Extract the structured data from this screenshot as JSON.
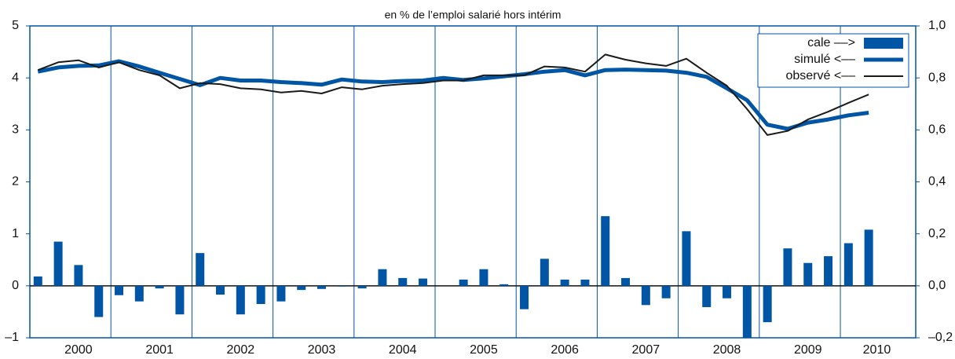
{
  "chart_data": {
    "type": "combo",
    "title": "en % de l’emploi salarié hors intérim",
    "x": [
      2000.1,
      2000.35,
      2000.6,
      2000.85,
      2001.1,
      2001.35,
      2001.6,
      2001.85,
      2002.1,
      2002.35,
      2002.6,
      2002.85,
      2003.1,
      2003.35,
      2003.6,
      2003.85,
      2004.1,
      2004.35,
      2004.6,
      2004.85,
      2005.1,
      2005.35,
      2005.6,
      2005.85,
      2006.1,
      2006.35,
      2006.6,
      2006.85,
      2007.1,
      2007.35,
      2007.6,
      2007.85,
      2008.1,
      2008.35,
      2008.6,
      2008.85,
      2009.1,
      2009.35,
      2009.6,
      2009.85,
      2010.1,
      2010.35
    ],
    "xlim": [
      2000,
      2010.93
    ],
    "xticks": [
      {
        "value": 2000.6,
        "label": "2000"
      },
      {
        "value": 2001.6,
        "label": "2001"
      },
      {
        "value": 2002.6,
        "label": "2002"
      },
      {
        "value": 2003.6,
        "label": "2003"
      },
      {
        "value": 2004.6,
        "label": "2004"
      },
      {
        "value": 2005.6,
        "label": "2005"
      },
      {
        "value": 2006.6,
        "label": "2006"
      },
      {
        "value": 2007.6,
        "label": "2007"
      },
      {
        "value": 2008.6,
        "label": "2008"
      },
      {
        "value": 2009.6,
        "label": "2009"
      },
      {
        "value": 2010.45,
        "label": "2010"
      }
    ],
    "xgrid": [
      2001,
      2002,
      2003,
      2004,
      2005,
      2006,
      2007,
      2008,
      2009,
      2010
    ],
    "ylim": [
      -1,
      5
    ],
    "yticks": [
      {
        "value": -1,
        "label": "–1"
      },
      0,
      1,
      2,
      3,
      4,
      5
    ],
    "y2lim": [
      -0.2,
      1.0
    ],
    "y2ticks": [
      {
        "value": -0.2,
        "label": "–0,2"
      },
      {
        "value": 0,
        "label": "0,0"
      },
      {
        "value": 0.2,
        "label": "0,2"
      },
      {
        "value": 0.4,
        "label": "0,4"
      },
      {
        "value": 0.6,
        "label": "0,6"
      },
      {
        "value": 0.8,
        "label": "0,8"
      },
      {
        "value": 1.0,
        "label": "1,0"
      }
    ],
    "grid_color": "#0055a4",
    "legend": "upper right",
    "series": [
      {
        "name": "cale ––>",
        "type": "bar",
        "axis": "y2",
        "color": "#0055a4",
        "values": [
          0.036,
          0.17,
          0.08,
          -0.12,
          -0.036,
          -0.06,
          -0.01,
          -0.11,
          0.126,
          -0.034,
          -0.11,
          -0.07,
          -0.06,
          -0.016,
          -0.012,
          -0.003,
          -0.01,
          0.064,
          0.03,
          0.028,
          0,
          0.024,
          0.064,
          0.006,
          -0.09,
          0.104,
          0.024,
          0.024,
          0.268,
          0.03,
          -0.074,
          -0.048,
          0.21,
          -0.082,
          -0.048,
          -0.2,
          -0.14,
          0.144,
          0.088,
          0.114,
          0.164,
          0.216
        ]
      },
      {
        "name": "simulé <––",
        "type": "line",
        "color": "#0055a4",
        "width": 5,
        "values": [
          4.12,
          4.2,
          4.23,
          4.24,
          4.32,
          4.22,
          4.1,
          3.98,
          3.86,
          4.0,
          3.95,
          3.95,
          3.92,
          3.9,
          3.87,
          3.97,
          3.93,
          3.92,
          3.94,
          3.95,
          4.0,
          3.96,
          3.99,
          4.03,
          4.07,
          4.12,
          4.15,
          4.05,
          4.15,
          4.16,
          4.15,
          4.14,
          4.1,
          4.02,
          3.8,
          3.57,
          3.1,
          3.02,
          3.14,
          3.2,
          3.28,
          3.33
        ]
      },
      {
        "name": "observé <––",
        "type": "line",
        "color": "#1a1a1a",
        "width": 2,
        "values": [
          4.15,
          4.3,
          4.34,
          4.2,
          4.3,
          4.15,
          4.05,
          3.8,
          3.9,
          3.88,
          3.8,
          3.78,
          3.72,
          3.75,
          3.7,
          3.82,
          3.78,
          3.85,
          3.88,
          3.9,
          3.95,
          3.95,
          4.05,
          4.05,
          4.05,
          4.22,
          4.2,
          4.12,
          4.45,
          4.35,
          4.28,
          4.23,
          4.37,
          4.1,
          3.85,
          3.4,
          2.9,
          2.98,
          3.2,
          3.35,
          3.52,
          3.68
        ]
      }
    ]
  }
}
